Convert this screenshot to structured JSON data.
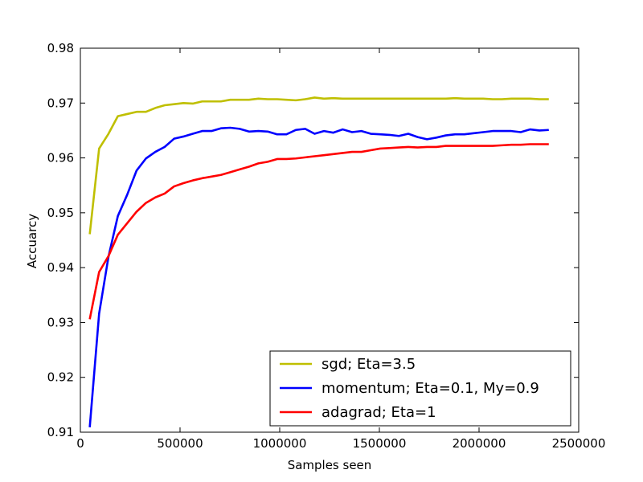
{
  "chart_data": {
    "type": "line",
    "title": "",
    "xlabel": "Samples seen",
    "ylabel": "Accuarcy",
    "xlim": [
      0,
      2500000
    ],
    "ylim": [
      0.91,
      0.98
    ],
    "x_ticks": [
      0,
      500000,
      1000000,
      1500000,
      2000000,
      2500000
    ],
    "x_tick_labels": [
      "0",
      "500000",
      "1000000",
      "1500000",
      "2000000",
      "2500000"
    ],
    "y_ticks": [
      0.91,
      0.92,
      0.93,
      0.94,
      0.95,
      0.96,
      0.97,
      0.98
    ],
    "y_tick_labels": [
      "0.91",
      "0.92",
      "0.93",
      "0.94",
      "0.95",
      "0.96",
      "0.97",
      "0.98"
    ],
    "grid": false,
    "legend_position": "bottom-right",
    "x": [
      47000,
      94000,
      141000,
      188000,
      235000,
      282000,
      329000,
      376000,
      423000,
      470000,
      517000,
      564000,
      611000,
      658000,
      705000,
      752000,
      799000,
      846000,
      893000,
      940000,
      987000,
      1034000,
      1081000,
      1128000,
      1175000,
      1222000,
      1269000,
      1316000,
      1363000,
      1410000,
      1457000,
      1504000,
      1551000,
      1598000,
      1645000,
      1692000,
      1739000,
      1786000,
      1833000,
      1880000,
      1927000,
      1974000,
      2021000,
      2068000,
      2115000,
      2162000,
      2209000,
      2256000,
      2303000,
      2350000
    ],
    "series": [
      {
        "name": "sgd; Eta=3.5",
        "color": "#bfbf00",
        "values": [
          0.9461,
          0.9617,
          0.9644,
          0.9676,
          0.968,
          0.9684,
          0.9684,
          0.9691,
          0.9696,
          0.9698,
          0.97,
          0.9699,
          0.9703,
          0.9703,
          0.9703,
          0.9706,
          0.9706,
          0.9706,
          0.9708,
          0.9707,
          0.9707,
          0.9706,
          0.9705,
          0.9707,
          0.971,
          0.9708,
          0.9709,
          0.9708,
          0.9708,
          0.9708,
          0.9708,
          0.9708,
          0.9708,
          0.9708,
          0.9708,
          0.9708,
          0.9708,
          0.9708,
          0.9708,
          0.9709,
          0.9708,
          0.9708,
          0.9708,
          0.9707,
          0.9707,
          0.9708,
          0.9708,
          0.9708,
          0.9707,
          0.9707
        ]
      },
      {
        "name": "momentum; Eta=0.1, My=0.9",
        "color": "#0000ff",
        "values": [
          0.9109,
          0.9316,
          0.942,
          0.9494,
          0.9533,
          0.9577,
          0.9599,
          0.9611,
          0.962,
          0.9635,
          0.9639,
          0.9644,
          0.9649,
          0.9649,
          0.9654,
          0.9655,
          0.9653,
          0.9648,
          0.9649,
          0.9648,
          0.9643,
          0.9643,
          0.9651,
          0.9653,
          0.9644,
          0.9649,
          0.9646,
          0.9652,
          0.9647,
          0.9649,
          0.9644,
          0.9643,
          0.9642,
          0.964,
          0.9644,
          0.9638,
          0.9634,
          0.9637,
          0.9641,
          0.9643,
          0.9643,
          0.9645,
          0.9647,
          0.9649,
          0.9649,
          0.9649,
          0.9647,
          0.9652,
          0.965,
          0.9651
        ]
      },
      {
        "name": "adagrad; Eta=1",
        "color": "#ff0000",
        "values": [
          0.9306,
          0.9392,
          0.9421,
          0.946,
          0.9481,
          0.9502,
          0.9518,
          0.9528,
          0.9535,
          0.9548,
          0.9554,
          0.9559,
          0.9563,
          0.9566,
          0.9569,
          0.9574,
          0.9579,
          0.9584,
          0.959,
          0.9593,
          0.9598,
          0.9598,
          0.9599,
          0.9601,
          0.9603,
          0.9605,
          0.9607,
          0.9609,
          0.9611,
          0.9611,
          0.9614,
          0.9617,
          0.9618,
          0.9619,
          0.962,
          0.9619,
          0.962,
          0.962,
          0.9622,
          0.9622,
          0.9622,
          0.9622,
          0.9622,
          0.9622,
          0.9623,
          0.9624,
          0.9624,
          0.9625,
          0.9625,
          0.9625
        ]
      }
    ]
  }
}
